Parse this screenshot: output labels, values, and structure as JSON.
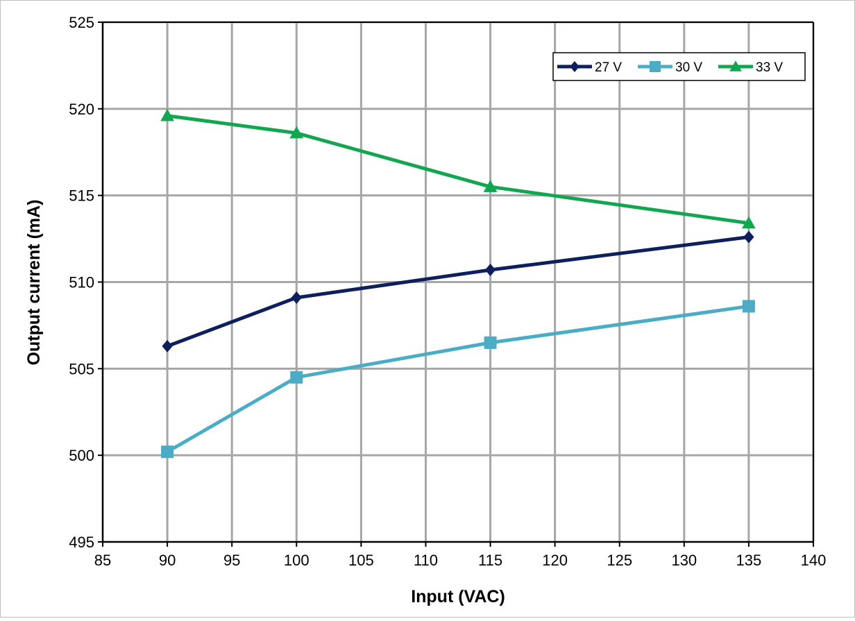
{
  "chart_data": {
    "type": "line",
    "title": "",
    "xlabel": "Input (VAC)",
    "ylabel": "Output current (mA)",
    "xlim": [
      85,
      140
    ],
    "ylim": [
      495,
      525
    ],
    "x_ticks": [
      85,
      90,
      95,
      100,
      105,
      110,
      115,
      120,
      125,
      130,
      135,
      140
    ],
    "y_ticks": [
      495,
      500,
      505,
      510,
      515,
      520,
      525
    ],
    "grid": true,
    "legend_position": "top-right",
    "x": [
      90,
      100,
      115,
      135
    ],
    "series": [
      {
        "name": "27 V",
        "values": [
          506.3,
          509.1,
          510.7,
          512.6
        ],
        "color": "#0d1f5c",
        "marker": "diamond"
      },
      {
        "name": "30 V",
        "values": [
          500.2,
          504.5,
          506.5,
          508.6
        ],
        "color": "#4bacc6",
        "marker": "square"
      },
      {
        "name": "33 V",
        "values": [
          519.6,
          518.6,
          515.5,
          513.4
        ],
        "color": "#12a650",
        "marker": "triangle"
      }
    ]
  },
  "colors": {
    "grid": "#a6a6a6",
    "axis": "#000000",
    "frame": "#bfbfbf"
  }
}
